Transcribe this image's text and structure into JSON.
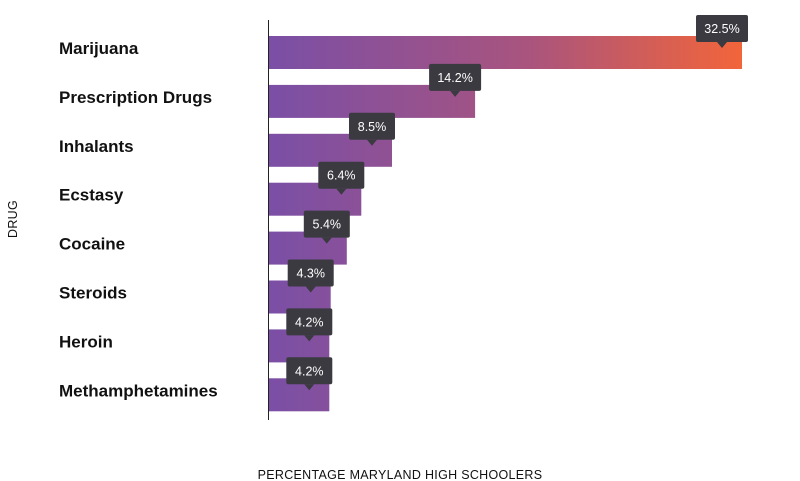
{
  "colors": {
    "bar_start": "#7a4fa6",
    "bar_mid": "#a9547e",
    "bar_end": "#f2653a",
    "tooltip_bg": "#3a3a40",
    "axis_line": "#222222"
  },
  "chart_data": {
    "type": "bar",
    "orientation": "horizontal",
    "xlabel": "PERCENTAGE MARYLAND HIGH SCHOOLERS",
    "ylabel": "DRUG",
    "categories": [
      "Marijuana",
      "Prescription Drugs",
      "Inhalants",
      "Ecstasy",
      "Cocaine",
      "Steroids",
      "Heroin",
      "Methamphetamines"
    ],
    "values": [
      32.5,
      14.2,
      8.5,
      6.4,
      5.4,
      4.3,
      4.2,
      4.2
    ],
    "data_labels": [
      "32.5%",
      "14.2%",
      "8.5%",
      "6.4%",
      "5.4%",
      "4.3%",
      "4.2%",
      "4.2%"
    ],
    "xlim": [
      0,
      32.5
    ],
    "grid": false,
    "legend": "none"
  }
}
